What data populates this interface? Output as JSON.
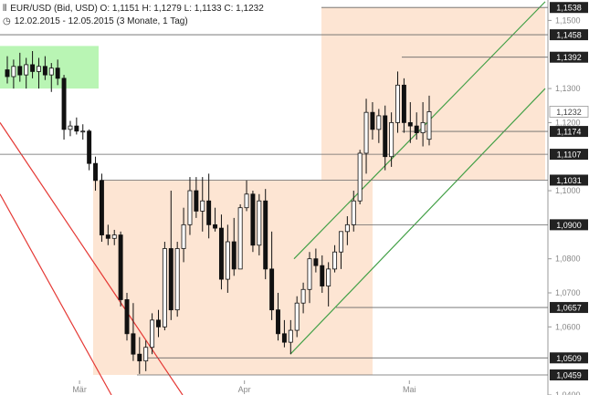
{
  "header": {
    "line1": "EUR/USD (Bid, USD)  O: 1,1151  H: 1,1279  L: 1,1133  C: 1,1232",
    "line2": "12.02.2015 - 12.05.2015 (3 Monate, 1 Tag)",
    "chart_icon": "candlestick-icon",
    "clock_icon": "clock-icon"
  },
  "chart_data": {
    "type": "candlestick",
    "instrument": "EUR/USD (Bid, USD)",
    "ohlc": {
      "open": "1,1151",
      "high": "1,1279",
      "low": "1,1133",
      "close": "1,1232"
    },
    "period": "12.02.2015 - 12.05.2015 (3 Monate, 1 Tag)",
    "ylim": [
      1.04,
      1.156
    ],
    "yticks": [
      {
        "v": 1.15,
        "label": "1,1500"
      },
      {
        "v": 1.13,
        "label": "1,1300"
      },
      {
        "v": 1.12,
        "label": "1,1200"
      },
      {
        "v": 1.1,
        "label": "1,1000"
      },
      {
        "v": 1.08,
        "label": "1,0800"
      },
      {
        "v": 1.07,
        "label": "1,0700"
      },
      {
        "v": 1.06,
        "label": "1,0600"
      },
      {
        "v": 1.04,
        "label": "1,0400"
      }
    ],
    "xticks": [
      {
        "pos": 0.135,
        "label": "Mär"
      },
      {
        "pos": 0.415,
        "label": "Apr"
      },
      {
        "pos": 0.695,
        "label": "Mai"
      }
    ],
    "levels": [
      {
        "v": 1.1538,
        "label": "1,1538"
      },
      {
        "v": 1.1458,
        "label": "1,1458"
      },
      {
        "v": 1.1392,
        "label": "1,1392"
      },
      {
        "v": 1.1232,
        "label": "1,1232",
        "current": true
      },
      {
        "v": 1.1174,
        "label": "1,1174"
      },
      {
        "v": 1.1107,
        "label": "1,1107"
      },
      {
        "v": 1.1031,
        "label": "1,1031"
      },
      {
        "v": 1.09,
        "label": "1,0900"
      },
      {
        "v": 1.0657,
        "label": "1,0657"
      },
      {
        "v": 1.0509,
        "label": "1,0509"
      },
      {
        "v": 1.0459,
        "label": "1,0459"
      }
    ],
    "candles": [
      [
        1.1355,
        1.1395,
        1.1315,
        1.1335
      ],
      [
        1.1335,
        1.1385,
        1.13,
        1.1365
      ],
      [
        1.1365,
        1.1405,
        1.132,
        1.134
      ],
      [
        1.134,
        1.139,
        1.13,
        1.137
      ],
      [
        1.137,
        1.141,
        1.133,
        1.135
      ],
      [
        1.135,
        1.139,
        1.13,
        1.1365
      ],
      [
        1.1365,
        1.1395,
        1.1325,
        1.134
      ],
      [
        1.134,
        1.1375,
        1.129,
        1.136
      ],
      [
        1.136,
        1.1385,
        1.131,
        1.133
      ],
      [
        1.133,
        1.134,
        1.115,
        1.118
      ],
      [
        1.118,
        1.1205,
        1.116,
        1.119
      ],
      [
        1.119,
        1.1215,
        1.1165,
        1.1175
      ],
      [
        1.1175,
        1.1195,
        1.115,
        1.1175
      ],
      [
        1.1175,
        1.118,
        1.106,
        1.108
      ],
      [
        1.108,
        1.11,
        1.1,
        1.103
      ],
      [
        1.103,
        1.105,
        1.085,
        1.087
      ],
      [
        1.087,
        1.09,
        1.084,
        1.086
      ],
      [
        1.086,
        1.0885,
        1.084,
        1.087
      ],
      [
        1.087,
        1.088,
        1.066,
        1.068
      ],
      [
        1.068,
        1.07,
        1.056,
        1.058
      ],
      [
        1.058,
        1.067,
        1.05,
        1.052
      ],
      [
        1.052,
        1.057,
        1.0462,
        1.05
      ],
      [
        1.05,
        1.056,
        1.047,
        1.054
      ],
      [
        1.054,
        1.064,
        1.052,
        1.062
      ],
      [
        1.062,
        1.065,
        1.057,
        1.06
      ],
      [
        1.06,
        1.085,
        1.059,
        1.083
      ],
      [
        1.083,
        1.1,
        1.062,
        1.065
      ],
      [
        1.065,
        1.085,
        1.063,
        1.083
      ],
      [
        1.083,
        1.095,
        1.079,
        1.09
      ],
      [
        1.09,
        1.104,
        1.087,
        1.1
      ],
      [
        1.1,
        1.104,
        1.092,
        1.094
      ],
      [
        1.094,
        1.104,
        1.088,
        1.097
      ],
      [
        1.097,
        1.105,
        1.086,
        1.09
      ],
      [
        1.09,
        1.095,
        1.088,
        1.089
      ],
      [
        1.089,
        1.093,
        1.071,
        1.074
      ],
      [
        1.074,
        1.09,
        1.07,
        1.085
      ],
      [
        1.085,
        1.092,
        1.075,
        1.077
      ],
      [
        1.077,
        1.096,
        1.077,
        1.095
      ],
      [
        1.095,
        1.103,
        1.094,
        1.099
      ],
      [
        1.099,
        1.1,
        1.082,
        1.084
      ],
      [
        1.084,
        1.099,
        1.081,
        1.097
      ],
      [
        1.097,
        1.1005,
        1.074,
        1.077
      ],
      [
        1.077,
        1.088,
        1.062,
        1.065
      ],
      [
        1.065,
        1.07,
        1.056,
        1.058
      ],
      [
        1.058,
        1.062,
        1.054,
        1.0555
      ],
      [
        1.0555,
        1.062,
        1.052,
        1.059
      ],
      [
        1.059,
        1.069,
        1.057,
        1.067
      ],
      [
        1.067,
        1.073,
        1.064,
        1.071
      ],
      [
        1.071,
        1.082,
        1.067,
        1.08
      ],
      [
        1.08,
        1.083,
        1.076,
        1.078
      ],
      [
        1.078,
        1.081,
        1.07,
        1.072
      ],
      [
        1.072,
        1.079,
        1.066,
        1.077
      ],
      [
        1.077,
        1.084,
        1.076,
        1.082
      ],
      [
        1.082,
        1.088,
        1.077,
        1.088
      ],
      [
        1.088,
        1.0925,
        1.084,
        1.09
      ],
      [
        1.09,
        1.1,
        1.088,
        1.097
      ],
      [
        1.097,
        1.112,
        1.096,
        1.111
      ],
      [
        1.111,
        1.127,
        1.105,
        1.123
      ],
      [
        1.123,
        1.126,
        1.115,
        1.118
      ],
      [
        1.118,
        1.124,
        1.114,
        1.122
      ],
      [
        1.122,
        1.125,
        1.106,
        1.11
      ],
      [
        1.11,
        1.123,
        1.107,
        1.12
      ],
      [
        1.12,
        1.135,
        1.117,
        1.131
      ],
      [
        1.131,
        1.133,
        1.117,
        1.12
      ],
      [
        1.12,
        1.126,
        1.114,
        1.119
      ],
      [
        1.119,
        1.123,
        1.115,
        1.117
      ],
      [
        1.117,
        1.126,
        1.113,
        1.12
      ],
      [
        1.1151,
        1.1279,
        1.1133,
        1.1232
      ]
    ]
  }
}
